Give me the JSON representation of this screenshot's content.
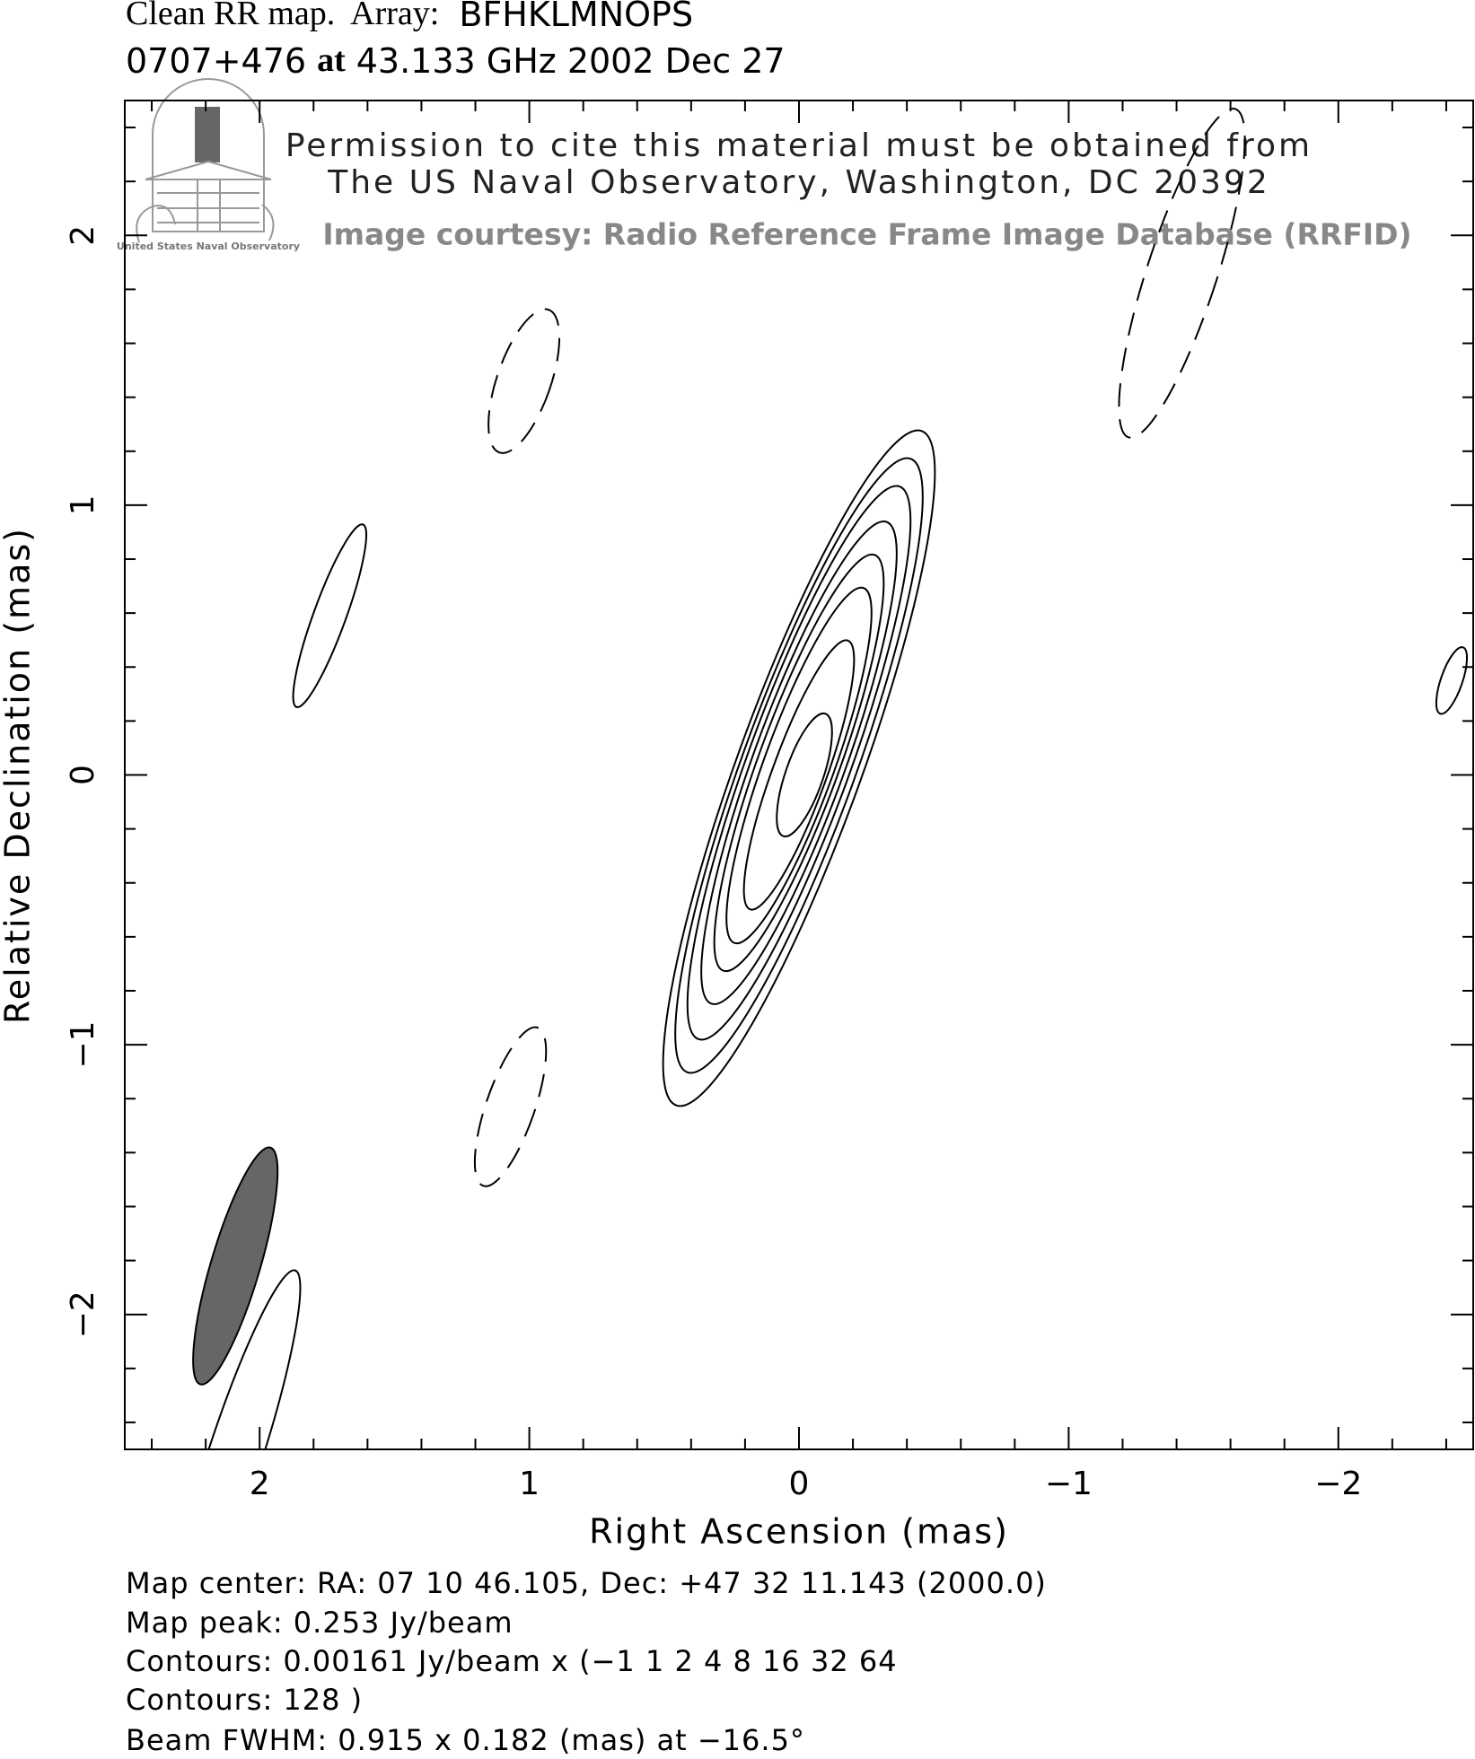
{
  "chart_data": {
    "type": "contour",
    "title_parts": [
      "Clean RR map.  Array:",
      "BFHKLMNOPS"
    ],
    "subtitle_parts": [
      "0707+476",
      "at",
      "43.133 GHz 2002 Dec 27"
    ],
    "x_label": "Right Ascension  (mas)",
    "y_label": "Relative Declination  (mas)",
    "xlim": [
      2.5,
      -2.5
    ],
    "ylim": [
      -2.5,
      2.5
    ],
    "xticks": [
      2,
      1,
      0,
      {
        "value": -1,
        "label": "−1"
      },
      {
        "value": -2,
        "label": "−2"
      }
    ],
    "yticks": [
      {
        "value": -2,
        "label": "−2"
      },
      {
        "value": -1,
        "label": "−1"
      },
      0,
      1,
      2
    ],
    "xminorticks": [
      2.4,
      2.2,
      1.8,
      1.6,
      1.4,
      1.2,
      0.8,
      0.6,
      0.4,
      0.2,
      -0.2,
      -0.4,
      -0.6,
      -0.8,
      -1.2,
      -1.4,
      -1.6,
      -1.8,
      -2.2,
      -2.4
    ],
    "yminorticks": [
      2.4,
      2.2,
      1.8,
      1.6,
      1.4,
      1.2,
      0.8,
      0.6,
      0.4,
      0.2,
      -0.2,
      -0.4,
      -0.6,
      -0.8,
      -1.2,
      -1.4,
      -1.6,
      -1.8,
      -2.2,
      -2.4
    ],
    "color": "#000000",
    "components": [
      {
        "x": 0,
        "y": 0.025,
        "semi_major": 1.33,
        "semi_minor": 0.23,
        "pa": -20,
        "dashed": false
      },
      {
        "x": 0,
        "y": 0.035,
        "semi_major": 1.21,
        "semi_minor": 0.21,
        "pa": -20,
        "dashed": false
      },
      {
        "x": 0,
        "y": 0.045,
        "semi_major": 1.09,
        "semi_minor": 0.19,
        "pa": -20,
        "dashed": false
      },
      {
        "x": 0,
        "y": 0.045,
        "semi_major": 0.95,
        "semi_minor": 0.17,
        "pa": -20,
        "dashed": false
      },
      {
        "x": 0,
        "y": 0.045,
        "semi_major": 0.82,
        "semi_minor": 0.15,
        "pa": -20,
        "dashed": false
      },
      {
        "x": 0,
        "y": 0.035,
        "semi_major": 0.7,
        "semi_minor": 0.13,
        "pa": -20,
        "dashed": false
      },
      {
        "x": 0,
        "y": 0.0,
        "semi_major": 0.53,
        "semi_minor": 0.1,
        "pa": -20,
        "dashed": false
      },
      {
        "x": -0.02,
        "y": 0.0,
        "semi_major": 0.24,
        "semi_minor": 0.07,
        "pa": -19,
        "dashed": false
      },
      {
        "x": 1.74,
        "y": 0.59,
        "semi_major": 0.36,
        "semi_minor": 0.06,
        "pa": -20,
        "dashed": false
      },
      {
        "x": 1.02,
        "y": 1.46,
        "semi_major": 0.28,
        "semi_minor": 0.1,
        "pa": -19,
        "dashed": true
      },
      {
        "x": 1.07,
        "y": -1.23,
        "semi_major": 0.31,
        "semi_minor": 0.09,
        "pa": -19,
        "dashed": true
      },
      {
        "x": -1.42,
        "y": 1.86,
        "semi_major": 0.64,
        "semi_minor": 0.13,
        "pa": -18,
        "dashed": true
      },
      {
        "x": -2.42,
        "y": 0.35,
        "semi_major": 0.13,
        "semi_minor": 0.04,
        "pa": -19,
        "dashed": false
      },
      {
        "x": 2.1,
        "y": -2.55,
        "semi_major": 0.75,
        "semi_minor": 0.1,
        "pa": -18,
        "dashed": false
      }
    ],
    "beam": {
      "x": 2.09,
      "y": -1.82,
      "major": 0.915,
      "minor": 0.182,
      "pa": -16.5,
      "color": "#666666"
    },
    "footer": [
      "Map center:  RA: 07 10 46.105,  Dec: +47 32 11.143 (2000.0)",
      "Map peak: 0.253 Jy/beam",
      "Contours: 0.00161 Jy/beam x (−1 1 2 4 8 16 32 64",
      "Contours: 128 )",
      "Beam FWHM: 0.915 x 0.182 (mas) at −16.5°"
    ]
  },
  "watermark": {
    "logo_caption": "United States Naval Observatory",
    "lines": [
      "Permission to cite this material must be obtained from",
      "The US Naval Observatory, Washington, DC 20392"
    ],
    "courtesy": "Image courtesy: Radio Reference Frame Image Database (RRFID)"
  }
}
